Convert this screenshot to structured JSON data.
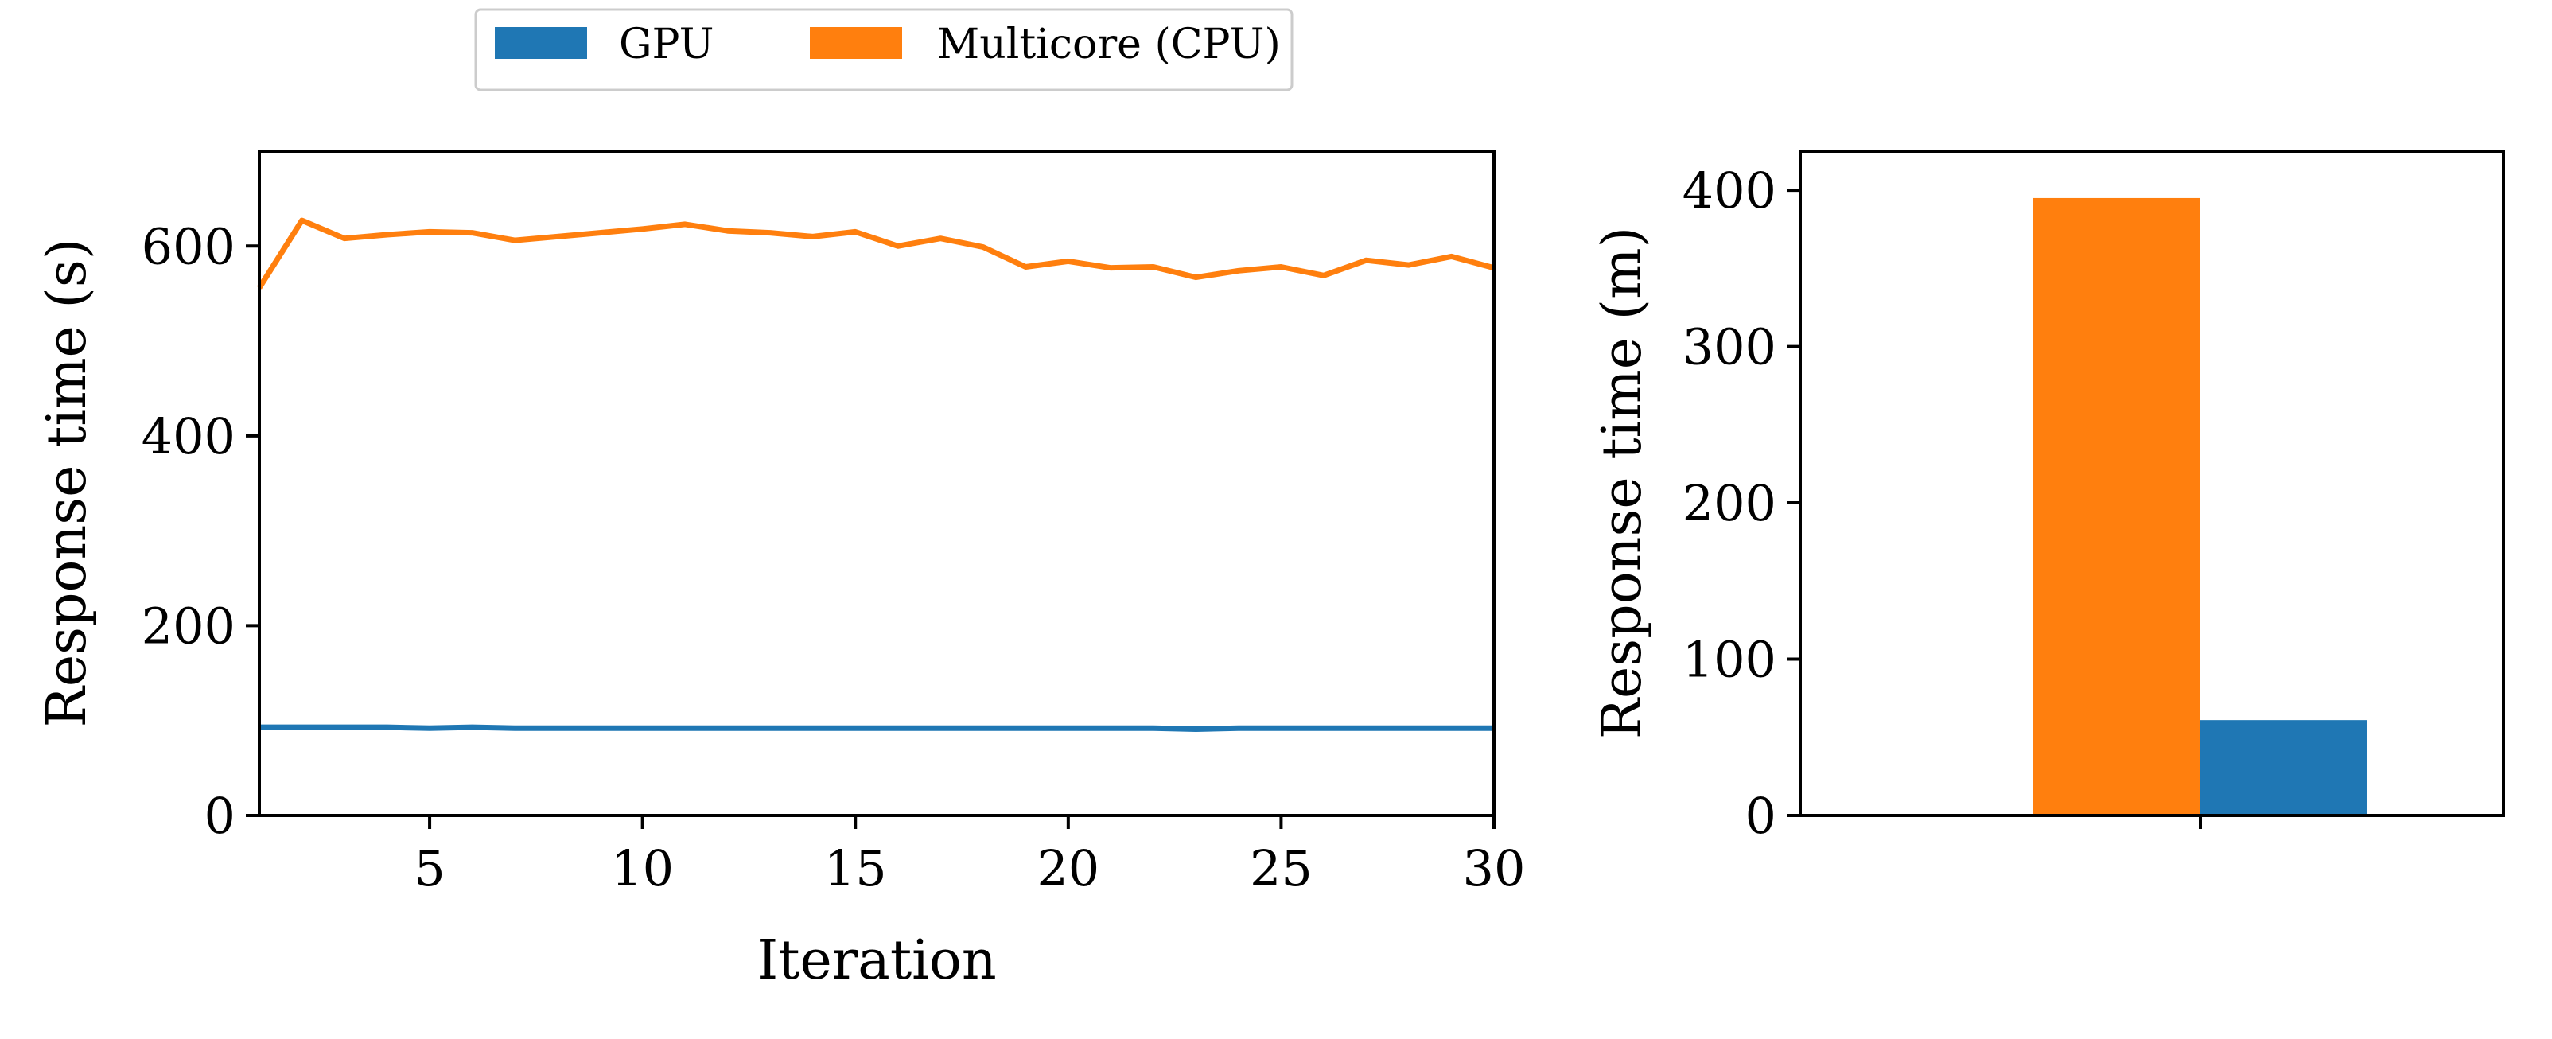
{
  "legend": [
    {
      "label": "GPU",
      "color": "#1f77b4"
    },
    {
      "label": "Multicore (CPU)",
      "color": "#ff7f0e"
    }
  ],
  "chart_data": [
    {
      "type": "line",
      "xlabel": "Iteration",
      "ylabel": "Response time (s)",
      "xlim": [
        1,
        30
      ],
      "ylim": [
        0,
        700
      ],
      "xticks": [
        5,
        10,
        15,
        20,
        25,
        30
      ],
      "yticks": [
        0,
        200,
        400,
        600
      ],
      "grid": false,
      "x": [
        1,
        2,
        3,
        4,
        5,
        6,
        7,
        8,
        9,
        10,
        11,
        12,
        13,
        14,
        15,
        16,
        17,
        18,
        19,
        20,
        21,
        22,
        23,
        24,
        25,
        26,
        27,
        28,
        29,
        30
      ],
      "series": [
        {
          "name": "GPU",
          "color": "#1f77b4",
          "values": [
            93,
            93,
            93,
            93,
            92,
            93,
            92,
            92,
            92,
            92,
            92,
            92,
            92,
            92,
            92,
            92,
            92,
            92,
            92,
            92,
            92,
            92,
            91,
            92,
            92,
            92,
            92,
            92,
            92,
            92
          ]
        },
        {
          "name": "Multicore (CPU)",
          "color": "#ff7f0e",
          "values": [
            556,
            627,
            608,
            612,
            615,
            614,
            606,
            610,
            614,
            618,
            623,
            616,
            614,
            610,
            615,
            600,
            608,
            599,
            578,
            584,
            577,
            578,
            567,
            574,
            578,
            569,
            585,
            580,
            589,
            577
          ]
        }
      ]
    },
    {
      "type": "bar",
      "ylabel": "Response time (m)",
      "ylim": [
        0,
        425
      ],
      "yticks": [
        0,
        100,
        200,
        300,
        400
      ],
      "grid": false,
      "series": [
        {
          "name": "Multicore (CPU)",
          "color": "#ff7f0e",
          "values": [
            395
          ]
        },
        {
          "name": "GPU",
          "color": "#1f77b4",
          "values": [
            61
          ]
        }
      ]
    }
  ]
}
